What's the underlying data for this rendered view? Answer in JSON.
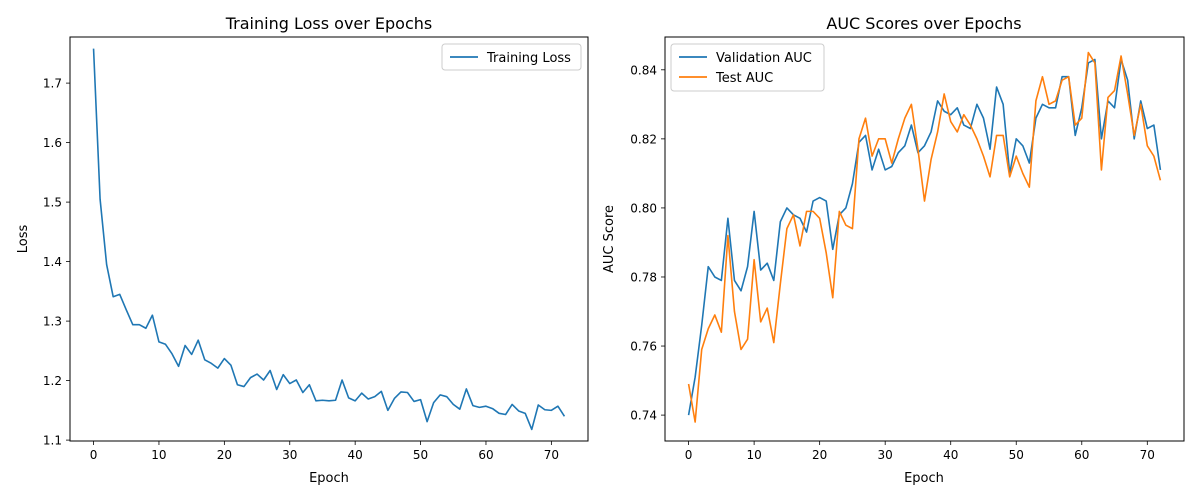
{
  "chart_data": [
    {
      "type": "line",
      "title": "Training Loss over Epochs",
      "xlabel": "Epoch",
      "ylabel": "Loss",
      "xlim": [
        -3.6,
        75.6
      ],
      "ylim": [
        1.0985,
        1.7775
      ],
      "xticks": [
        0,
        10,
        20,
        30,
        40,
        50,
        60,
        70
      ],
      "yticks": [
        1.1,
        1.2,
        1.3,
        1.4,
        1.5,
        1.6,
        1.7
      ],
      "xtick_labels": [
        "0",
        "10",
        "20",
        "30",
        "40",
        "50",
        "60",
        "70"
      ],
      "ytick_labels": [
        "1.1",
        "1.2",
        "1.3",
        "1.4",
        "1.5",
        "1.6",
        "1.7"
      ],
      "grid": false,
      "legend_position": "top-right",
      "series": [
        {
          "name": "Training Loss",
          "color": "#1f77b4",
          "x": [
            0,
            1,
            2,
            3,
            4,
            5,
            6,
            7,
            8,
            9,
            10,
            11,
            12,
            13,
            14,
            15,
            16,
            17,
            18,
            19,
            20,
            21,
            22,
            23,
            24,
            25,
            26,
            27,
            28,
            29,
            30,
            31,
            32,
            33,
            34,
            35,
            36,
            37,
            38,
            39,
            40,
            41,
            42,
            43,
            44,
            45,
            46,
            47,
            48,
            49,
            50,
            51,
            52,
            53,
            54,
            55,
            56,
            57,
            58,
            59,
            60,
            61,
            62,
            63,
            64,
            65,
            66,
            67,
            68,
            69,
            70,
            71,
            72
          ],
          "values": [
            1.758,
            1.505,
            1.395,
            1.341,
            1.345,
            1.319,
            1.294,
            1.294,
            1.288,
            1.31,
            1.265,
            1.261,
            1.245,
            1.224,
            1.259,
            1.244,
            1.268,
            1.235,
            1.229,
            1.221,
            1.237,
            1.226,
            1.193,
            1.19,
            1.205,
            1.211,
            1.201,
            1.217,
            1.185,
            1.21,
            1.195,
            1.201,
            1.18,
            1.193,
            1.166,
            1.167,
            1.166,
            1.167,
            1.201,
            1.171,
            1.166,
            1.179,
            1.169,
            1.173,
            1.182,
            1.15,
            1.17,
            1.181,
            1.18,
            1.165,
            1.168,
            1.131,
            1.163,
            1.176,
            1.173,
            1.16,
            1.152,
            1.186,
            1.158,
            1.155,
            1.157,
            1.153,
            1.145,
            1.143,
            1.16,
            1.149,
            1.145,
            1.118,
            1.159,
            1.151,
            1.15,
            1.157,
            1.14
          ]
        }
      ]
    },
    {
      "type": "line",
      "title": "AUC Scores over Epochs",
      "xlabel": "Epoch",
      "ylabel": "AUC Score",
      "xlim": [
        -3.6,
        75.6
      ],
      "ylim": [
        0.7325,
        0.8495
      ],
      "xticks": [
        0,
        10,
        20,
        30,
        40,
        50,
        60,
        70
      ],
      "yticks": [
        0.74,
        0.76,
        0.78,
        0.8,
        0.82,
        0.84
      ],
      "xtick_labels": [
        "0",
        "10",
        "20",
        "30",
        "40",
        "50",
        "60",
        "70"
      ],
      "ytick_labels": [
        "0.74",
        "0.76",
        "0.78",
        "0.80",
        "0.82",
        "0.84"
      ],
      "grid": false,
      "legend_position": "top-left",
      "series": [
        {
          "name": "Validation AUC",
          "color": "#1f77b4",
          "x": [
            0,
            1,
            2,
            3,
            4,
            5,
            6,
            7,
            8,
            9,
            10,
            11,
            12,
            13,
            14,
            15,
            16,
            17,
            18,
            19,
            20,
            21,
            22,
            23,
            24,
            25,
            26,
            27,
            28,
            29,
            30,
            31,
            32,
            33,
            34,
            35,
            36,
            37,
            38,
            39,
            40,
            41,
            42,
            43,
            44,
            45,
            46,
            47,
            48,
            49,
            50,
            51,
            52,
            53,
            54,
            55,
            56,
            57,
            58,
            59,
            60,
            61,
            62,
            63,
            64,
            65,
            66,
            67,
            68,
            69,
            70,
            71,
            72
          ],
          "values": [
            0.74,
            0.751,
            0.766,
            0.783,
            0.78,
            0.779,
            0.797,
            0.779,
            0.776,
            0.783,
            0.799,
            0.782,
            0.784,
            0.779,
            0.796,
            0.8,
            0.798,
            0.797,
            0.793,
            0.802,
            0.803,
            0.802,
            0.788,
            0.798,
            0.8,
            0.807,
            0.819,
            0.821,
            0.811,
            0.817,
            0.811,
            0.812,
            0.816,
            0.818,
            0.824,
            0.816,
            0.818,
            0.822,
            0.831,
            0.828,
            0.827,
            0.829,
            0.824,
            0.823,
            0.83,
            0.826,
            0.817,
            0.835,
            0.83,
            0.81,
            0.82,
            0.818,
            0.813,
            0.826,
            0.83,
            0.829,
            0.829,
            0.838,
            0.838,
            0.821,
            0.829,
            0.842,
            0.843,
            0.82,
            0.831,
            0.829,
            0.843,
            0.837,
            0.82,
            0.831,
            0.823,
            0.824,
            0.811
          ]
        },
        {
          "name": "Test AUC",
          "color": "#ff7f0e",
          "x": [
            0,
            1,
            2,
            3,
            4,
            5,
            6,
            7,
            8,
            9,
            10,
            11,
            12,
            13,
            14,
            15,
            16,
            17,
            18,
            19,
            20,
            21,
            22,
            23,
            24,
            25,
            26,
            27,
            28,
            29,
            30,
            31,
            32,
            33,
            34,
            35,
            36,
            37,
            38,
            39,
            40,
            41,
            42,
            43,
            44,
            45,
            46,
            47,
            48,
            49,
            50,
            51,
            52,
            53,
            54,
            55,
            56,
            57,
            58,
            59,
            60,
            61,
            62,
            63,
            64,
            65,
            66,
            67,
            68,
            69,
            70,
            71,
            72
          ],
          "values": [
            0.749,
            0.738,
            0.759,
            0.765,
            0.769,
            0.764,
            0.792,
            0.77,
            0.759,
            0.762,
            0.785,
            0.767,
            0.771,
            0.761,
            0.778,
            0.794,
            0.798,
            0.789,
            0.799,
            0.799,
            0.797,
            0.787,
            0.774,
            0.799,
            0.795,
            0.794,
            0.82,
            0.826,
            0.815,
            0.82,
            0.82,
            0.813,
            0.82,
            0.826,
            0.83,
            0.817,
            0.802,
            0.814,
            0.822,
            0.833,
            0.825,
            0.822,
            0.827,
            0.824,
            0.82,
            0.815,
            0.809,
            0.821,
            0.821,
            0.809,
            0.815,
            0.81,
            0.806,
            0.831,
            0.838,
            0.83,
            0.831,
            0.837,
            0.838,
            0.824,
            0.826,
            0.845,
            0.842,
            0.811,
            0.832,
            0.834,
            0.844,
            0.833,
            0.821,
            0.83,
            0.818,
            0.815,
            0.808
          ]
        }
      ]
    }
  ]
}
